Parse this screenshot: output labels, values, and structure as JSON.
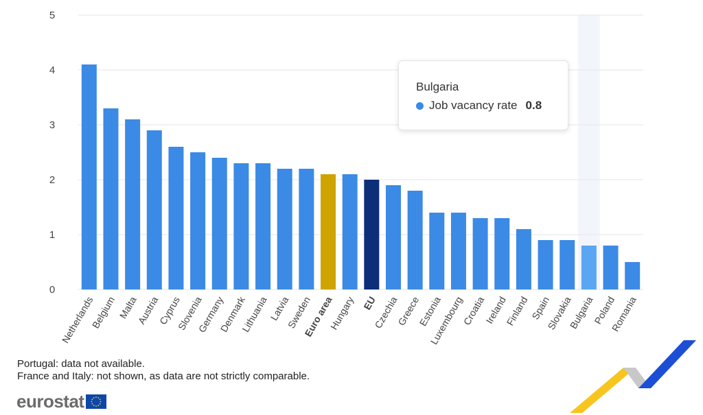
{
  "chart_data": {
    "type": "bar",
    "categories": [
      "Netherlands",
      "Belgium",
      "Malta",
      "Austria",
      "Cyprus",
      "Slovenia",
      "Germany",
      "Denmark",
      "Lithuania",
      "Latvia",
      "Sweden",
      "Euro area",
      "Hungary",
      "EU",
      "Czechia",
      "Greece",
      "Estonia",
      "Luxembourg",
      "Croatia",
      "Ireland",
      "Finland",
      "Spain",
      "Slovakia",
      "Bulgaria",
      "Poland",
      "Romania"
    ],
    "values": [
      4.1,
      3.3,
      3.1,
      2.9,
      2.6,
      2.5,
      2.4,
      2.3,
      2.3,
      2.2,
      2.2,
      2.1,
      2.1,
      2.0,
      1.9,
      1.8,
      1.4,
      1.4,
      1.3,
      1.3,
      1.1,
      0.9,
      0.9,
      0.8,
      0.8,
      0.5
    ],
    "series_name": "Job vacancy rate",
    "ylim": [
      0,
      5
    ],
    "yticks": [
      0,
      1,
      2,
      3,
      4,
      5
    ],
    "grid": true,
    "legend": "none",
    "bold_categories": [
      "Euro area",
      "EU"
    ],
    "highlighted_category": "Bulgaria",
    "colors": {
      "default": "#3b8ae6",
      "Euro area": "#cfa300",
      "EU": "#0d2e78",
      "Bulgaria": "#5aa6f2",
      "highlight_band": "#f3f5fc",
      "grid": "#e6e6e6"
    }
  },
  "tooltip": {
    "title": "Bulgaria",
    "series": "Job vacancy rate",
    "value": "0.8"
  },
  "notes": [
    "Portugal: data not available.",
    "France and Italy: not shown, as data are not strictly comparable."
  ],
  "logo": {
    "text": "eurostat",
    "icon": "eu-flag-icon"
  }
}
